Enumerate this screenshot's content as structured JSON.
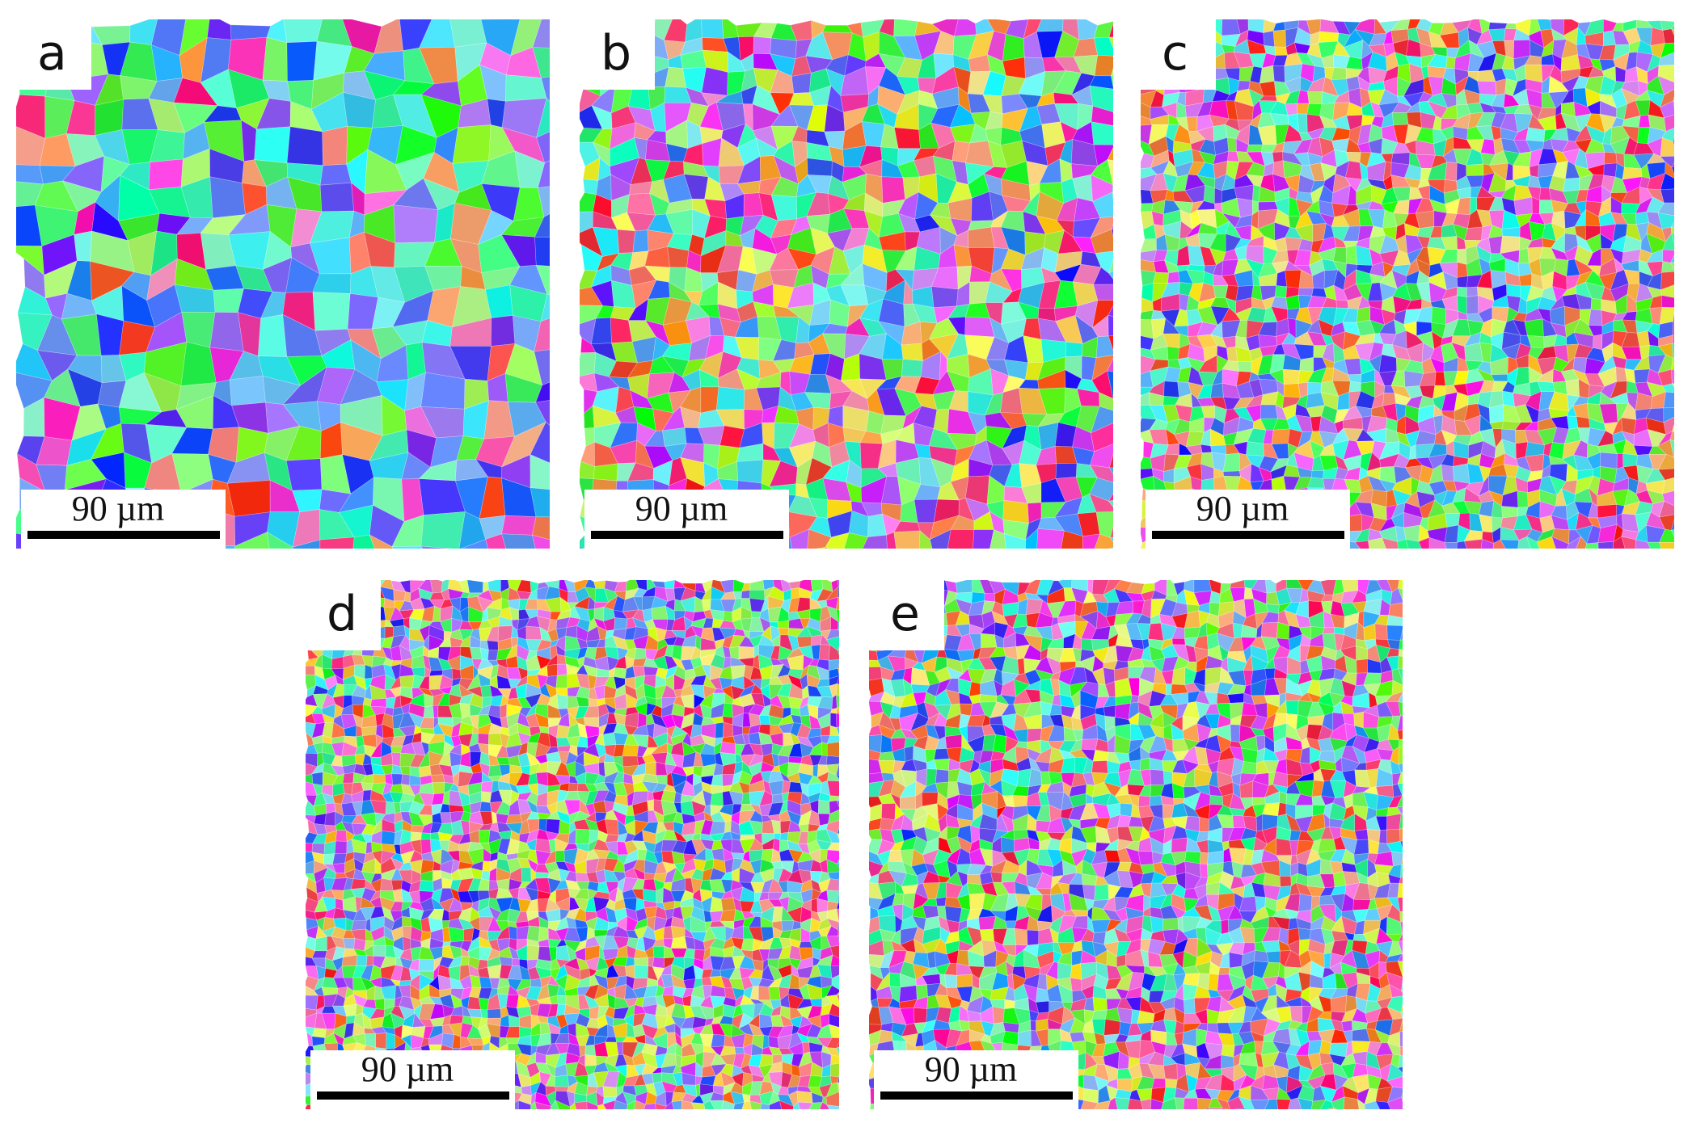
{
  "panels": [
    {
      "label": "a",
      "scale_bar": "90 µm"
    },
    {
      "label": "b",
      "scale_bar": "90 µm"
    },
    {
      "label": "c",
      "scale_bar": "90 µm"
    },
    {
      "label": "d",
      "scale_bar": "90 µm"
    },
    {
      "label": "e",
      "scale_bar": "90 µm"
    }
  ]
}
